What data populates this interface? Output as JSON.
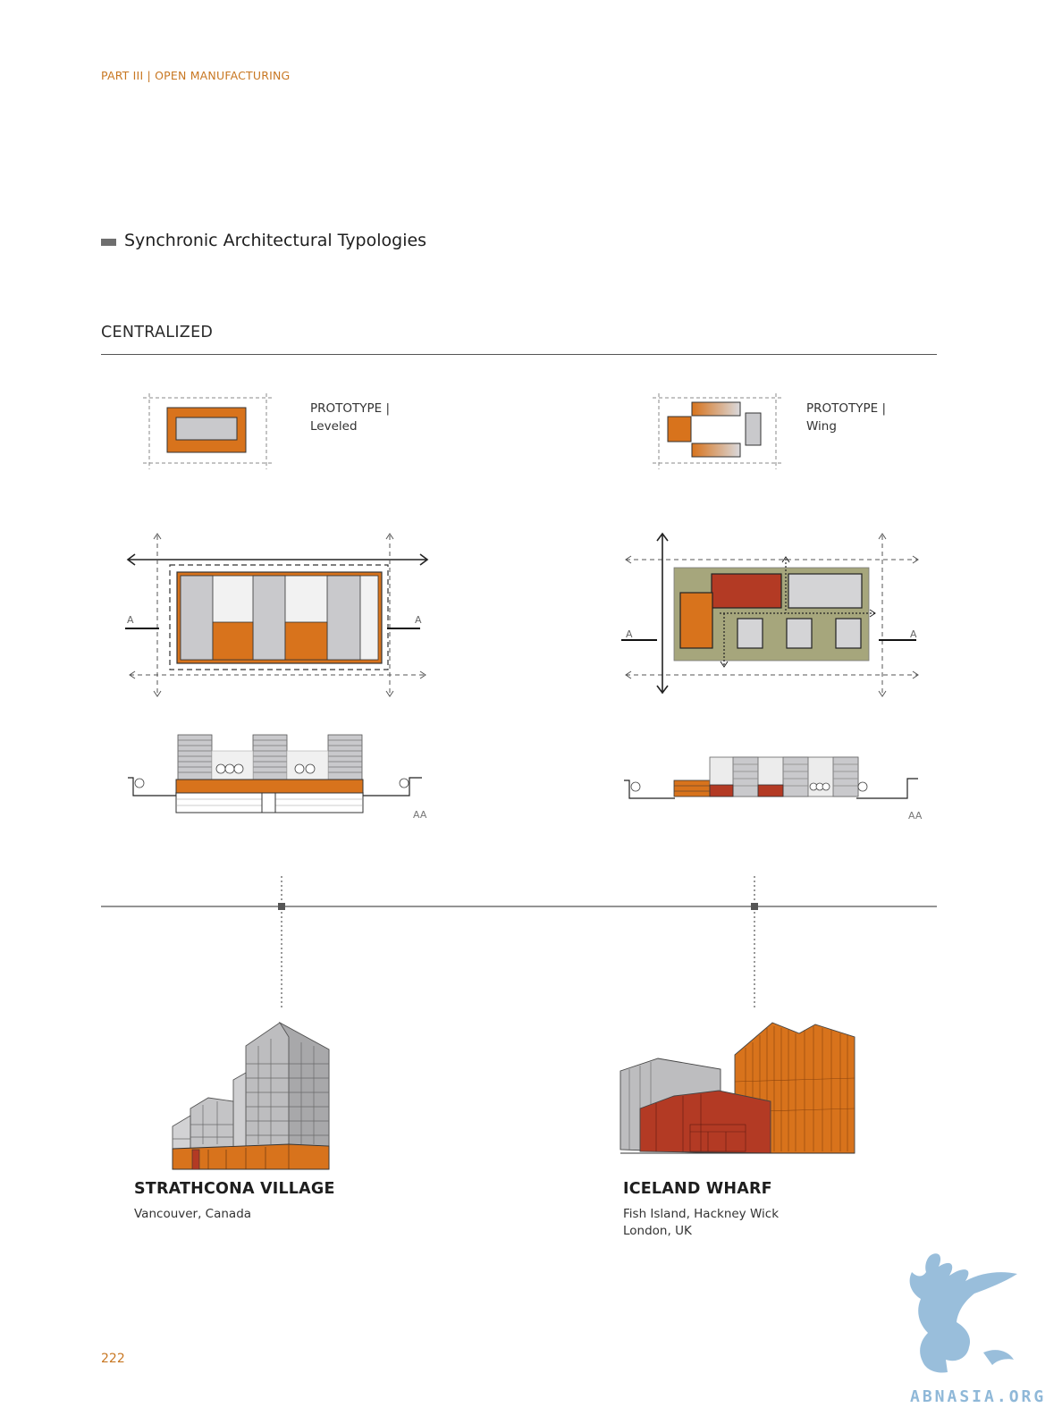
{
  "header": {
    "running_head": "PART III | OPEN MANUFACTURING"
  },
  "section": {
    "title": "Synchronic Architectural Typologies"
  },
  "subsection": {
    "title": "CENTRALIZED"
  },
  "prototypes": [
    {
      "line1": "PROTOTYPE |",
      "line2": "Leveled"
    },
    {
      "line1": "PROTOTYPE |",
      "line2": "Wing"
    }
  ],
  "plan_labels": {
    "section_marker": "A",
    "section_tag": "AA"
  },
  "cases": [
    {
      "name": "STRATHCONA VILLAGE",
      "location": [
        "Vancouver, Canada"
      ]
    },
    {
      "name": "ICELAND WHARF",
      "location": [
        "Fish Island, Hackney Wick",
        "London, UK"
      ]
    }
  ],
  "colors": {
    "accent": "#c87722",
    "orange": "#d8731c",
    "red": "#b33a24",
    "grey": "#c9c9cc",
    "olive": "#a6a67c",
    "watermark": "#8fb8d8"
  },
  "footer": {
    "page_number": "222"
  },
  "watermark": {
    "text": "ABNASIA.ORG"
  }
}
